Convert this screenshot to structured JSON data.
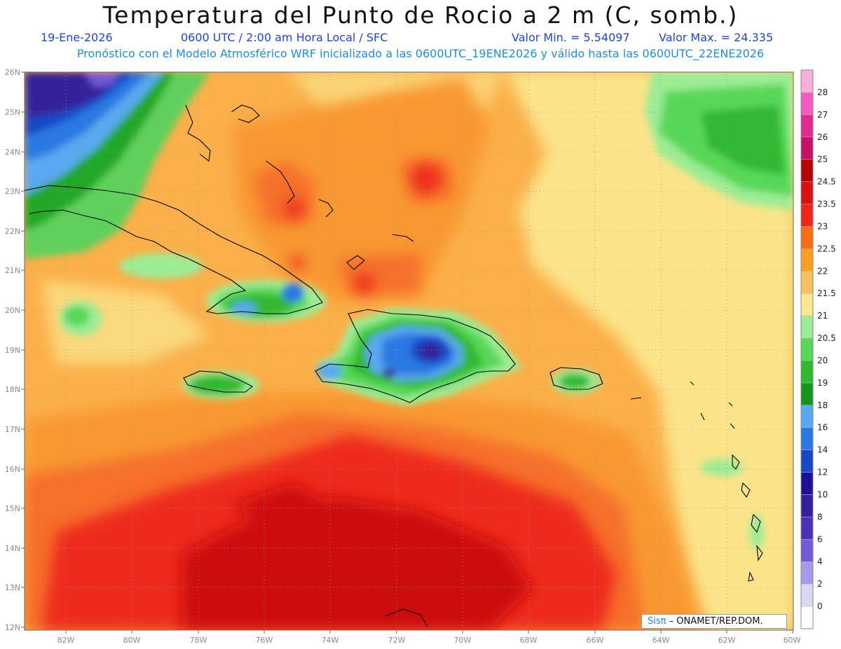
{
  "header": {
    "title": "Temperatura del Punto de Rocio a 2 m (C, somb.)",
    "date": "19-Ene-2026",
    "time": "0600 UTC / 2:00 am Hora Local / SFC",
    "min_label": "Valor Min. = 5.54097",
    "max_label": "Valor Max. = 24.335",
    "model_info": "Pronóstico con el Modelo Atmosférico WRF inicializado a las 0600UTC_19ENE2026 y válido hasta las  0600UTC_22ENE2026"
  },
  "map": {
    "lat_labels": [
      "26N",
      "25N",
      "24N",
      "23N",
      "22N",
      "21N",
      "20N",
      "19N",
      "18N",
      "17N",
      "16N",
      "15N",
      "14N",
      "13N",
      "12N"
    ],
    "lon_labels": [
      "82W",
      "80W",
      "78W",
      "76W",
      "74W",
      "72W",
      "70W",
      "68W",
      "66W",
      "64W",
      "62W",
      "60W"
    ],
    "lat_range": [
      12,
      26
    ],
    "lon_range": [
      -83.2,
      -60
    ],
    "gridlines": true
  },
  "colorbar": {
    "levels": [
      "0",
      "2",
      "4",
      "6",
      "8",
      "10",
      "12",
      "14",
      "16",
      "18",
      "19",
      "20",
      "20.5",
      "21",
      "21.5",
      "22",
      "22.5",
      "23",
      "23.5",
      "24.5",
      "25",
      "26",
      "27",
      "28"
    ],
    "colors": [
      "#ffffff",
      "#d8d8f4",
      "#a898ec",
      "#7458d6",
      "#4e30b8",
      "#34209a",
      "#1e0f94",
      "#1848c8",
      "#2a78e2",
      "#5aa8f0",
      "#14961c",
      "#30b830",
      "#58d858",
      "#9cec94",
      "#fbe88e",
      "#fbc05e",
      "#f9a020",
      "#f86e14",
      "#f0241a",
      "#dc1010",
      "#b80000",
      "#c41066",
      "#e42894",
      "#f45ac0",
      "#f8b0d8"
    ]
  },
  "credit": {
    "logo": "Sisπ",
    "text": "– ONAMET/REP.DOM."
  }
}
